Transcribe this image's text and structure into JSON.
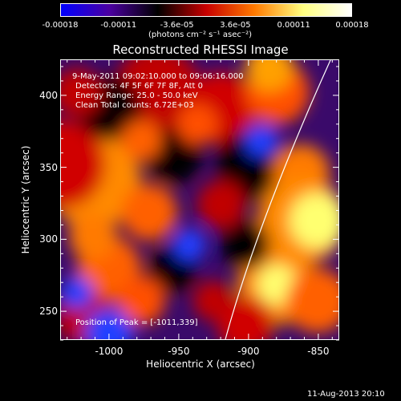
{
  "colorbar": {
    "tick_labels": [
      "-0.00018",
      "-0.00011",
      "-3.6e-05",
      "3.6e-05",
      "0.00011",
      "0.00018"
    ],
    "unit_label": "(photons cm⁻² s⁻¹ asec⁻²)",
    "colors": [
      "#0000ff",
      "#4b00a0",
      "#000000",
      "#c80000",
      "#ff7a00",
      "#ffff80",
      "#ffffff"
    ]
  },
  "title": "Reconstructed RHESSI Image",
  "info": {
    "line1": "9-May-2011 09:02:10.000 to 09:06:16.000",
    "line2": "Detectors: 4F 5F 6F 7F 8F, Att 0",
    "line3": "Energy Range: 25.0 - 50.0 keV",
    "line4": "Clean     Total counts: 6.72E+03"
  },
  "peak": "Position of Peak = [-1011,339]",
  "axes": {
    "xlabel": "Heliocentric X (arcsec)",
    "ylabel": "Heliocentric Y (arcsec)",
    "xticks": [
      "-1000",
      "-950",
      "-900",
      "-850"
    ],
    "yticks": [
      "400",
      "350",
      "300",
      "250"
    ],
    "xrange": [
      -1035,
      -835
    ],
    "yrange": [
      230,
      425
    ],
    "xtick_values": [
      -1000,
      -950,
      -900,
      -850
    ],
    "ytick_values": [
      400,
      350,
      300,
      250
    ]
  },
  "footer_date": "11-Aug-2013 20:10"
}
